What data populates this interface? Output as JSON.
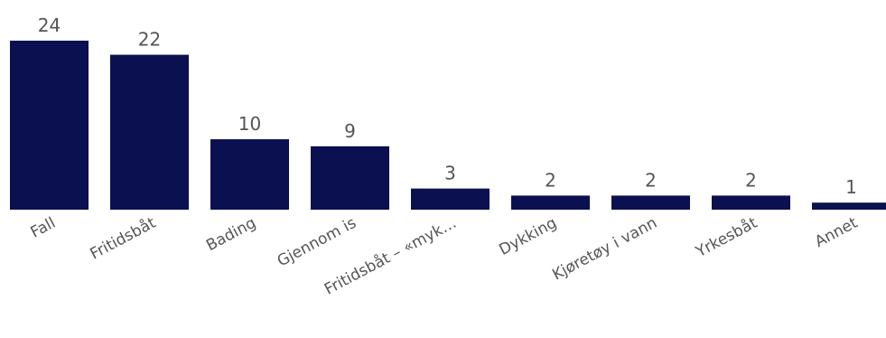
{
  "chart_data": {
    "type": "bar",
    "title": "",
    "xlabel": "",
    "ylabel": "",
    "categories": [
      "Fall",
      "Fritidsbåt",
      "Bading",
      "Gjennom is",
      "Fritidsbåt – «myk…",
      "Dykking",
      "Kjøretøy i vann",
      "Yrkesbåt",
      "Annet"
    ],
    "values": [
      24,
      22,
      10,
      9,
      3,
      2,
      2,
      2,
      1
    ],
    "ylim": [
      0,
      24
    ],
    "grid": false,
    "legend": "none",
    "bar_color": "#0a1050",
    "data_labels": true
  }
}
